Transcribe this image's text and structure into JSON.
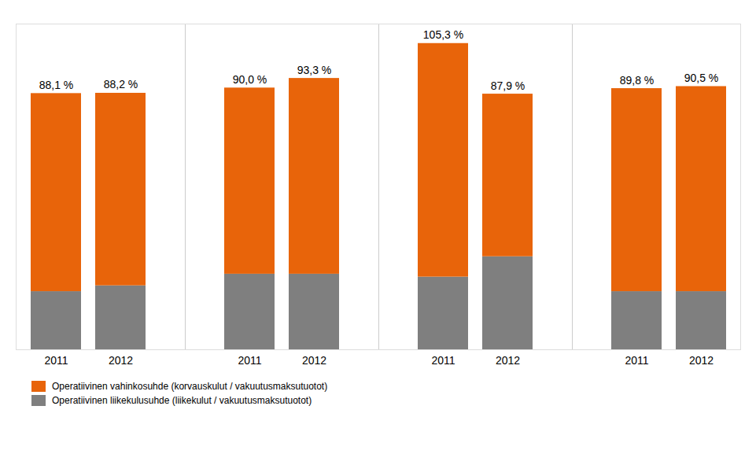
{
  "chart_data": {
    "type": "bar",
    "stacked": true,
    "categories": [
      "2011",
      "2012",
      "2011",
      "2012",
      "2011",
      "2012",
      "2011",
      "2012"
    ],
    "series": [
      {
        "name": "Operatiivinen liikekulusuhde (liikekulut / vakuutusmaksutuotot)",
        "color": "#7F7F7F",
        "values": [
          20.0,
          22.0,
          26.0,
          26.0,
          25.0,
          32.0,
          20.0,
          20.0
        ]
      },
      {
        "name": "Operatiivinen vahinkosuhde (korvauskulut / vakuutusmaksutuotot)",
        "color": "#E8640A",
        "values": [
          68.1,
          66.2,
          64.0,
          67.3,
          80.3,
          55.9,
          69.8,
          70.5
        ]
      }
    ],
    "totals": [
      88.1,
      88.2,
      90.0,
      93.3,
      105.3,
      87.9,
      89.8,
      90.5
    ],
    "total_labels": [
      "88,1 %",
      "88,2 %",
      "90,0 %",
      "93,3 %",
      "105,3 %",
      "87,9 %",
      "89,8 %",
      "90,5 %"
    ],
    "ylim": [
      0,
      112
    ],
    "tick_labels": "x",
    "legend": "lower left"
  }
}
